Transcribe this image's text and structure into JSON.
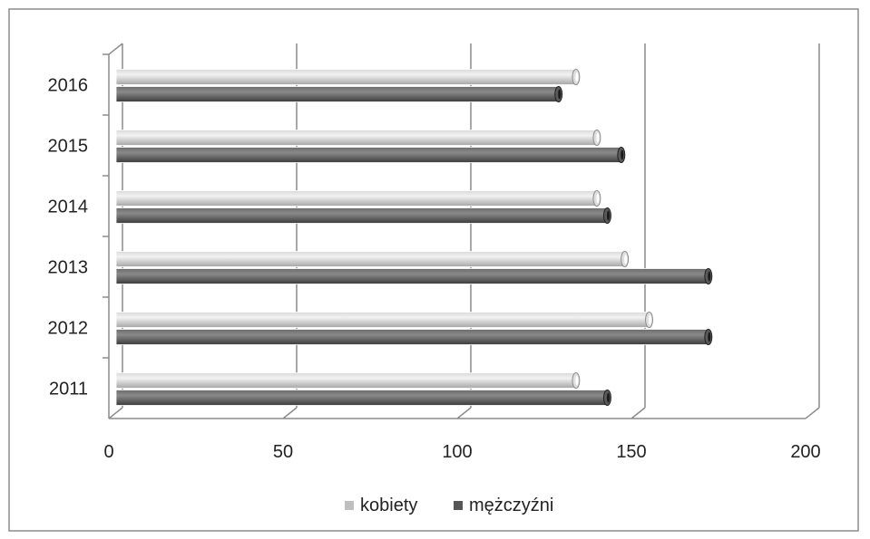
{
  "chart_data": {
    "type": "bar",
    "orientation": "horizontal",
    "style": "3d-cylinder",
    "categories": [
      "2011",
      "2012",
      "2013",
      "2014",
      "2015",
      "2016"
    ],
    "series": [
      {
        "name": "kobiety",
        "values": [
          132,
          153,
          146,
          138,
          138,
          132
        ],
        "color": "#c0c0c0"
      },
      {
        "name": "mężczyźni",
        "values": [
          141,
          170,
          170,
          141,
          145,
          127
        ],
        "color": "#555555"
      }
    ],
    "xlim": [
      0,
      200
    ],
    "xticks": [
      "0",
      "50",
      "100",
      "150",
      "200"
    ],
    "grid": "vertical",
    "legend_position": "bottom"
  }
}
